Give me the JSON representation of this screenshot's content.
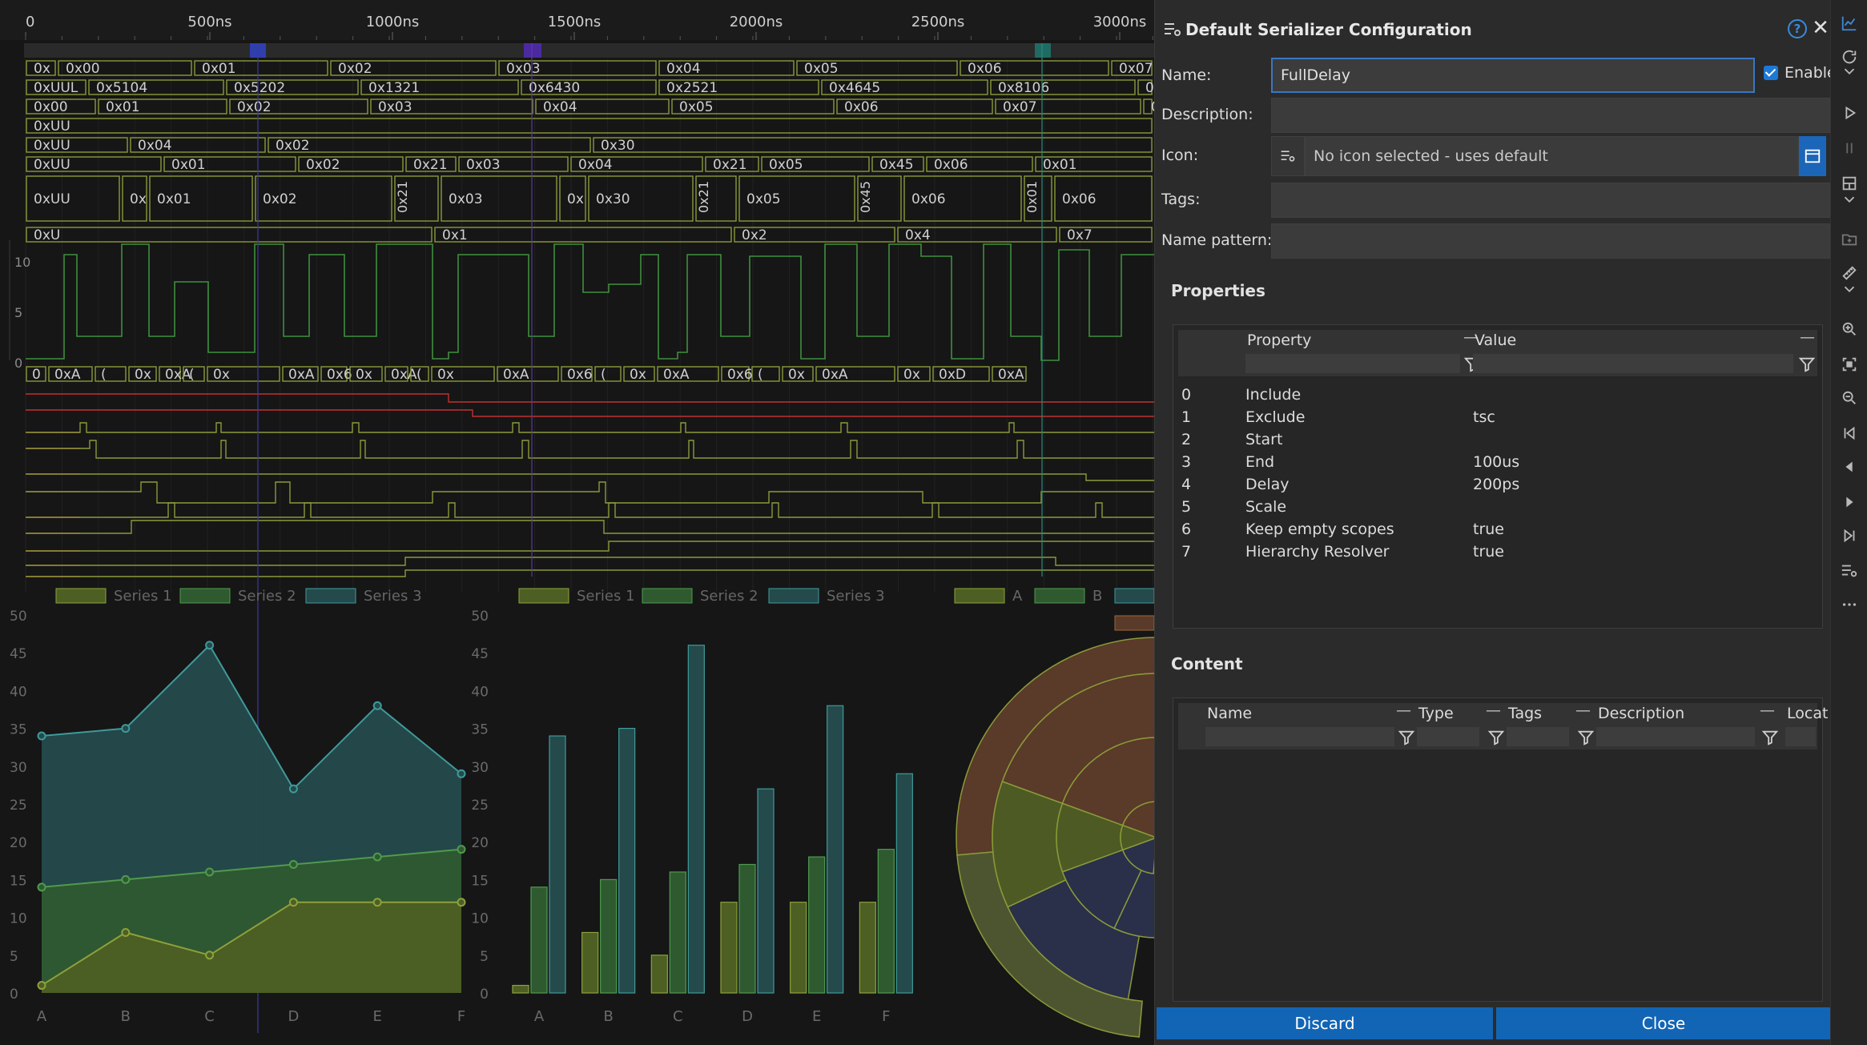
{
  "timeline": {
    "ticks": [
      "0",
      "500ns",
      "1000ns",
      "1500ns",
      "2000ns",
      "2500ns",
      "3000ns"
    ]
  },
  "bus_rows": [
    [
      "0x",
      "0x00",
      "0x01",
      "0x02",
      "0x03",
      "0x04",
      "0x05",
      "0x06",
      "0x07"
    ],
    [
      "0xUUL",
      "0x5104",
      "0x5202",
      "0x1321",
      "0x6430",
      "0x2521",
      "0x4645",
      "0x8106",
      "0x"
    ],
    [
      "0x00",
      "0x01",
      "0x02",
      "0x03",
      "0x04",
      "0x05",
      "0x06",
      "0x07",
      "0"
    ],
    [
      "0xUU"
    ],
    [
      "0xUU",
      "0x04",
      "0x02",
      "0x30"
    ],
    [
      "0xUU",
      "0x01",
      "0x02",
      "0x21",
      "0x03",
      "0x04",
      "0x21",
      "0x05",
      "0x45",
      "0x06",
      "0x01"
    ],
    [
      "0xUU",
      "0x",
      "0x01",
      "0x02",
      "0x21",
      "0x03",
      "0x",
      "0x30",
      "0x21",
      "0x05",
      "0x45",
      "0x06",
      "0x01",
      "0x06"
    ],
    [
      "0xU",
      "0x1",
      "0x2",
      "0x4",
      "0x7"
    ],
    [
      "0",
      "0xA",
      "(",
      "0x",
      "0xA",
      "(",
      "0x",
      "0xA",
      "0x6",
      "0x",
      "0xA",
      "(",
      "0x",
      "0xA",
      "0x6",
      "(",
      "0x",
      "0xA",
      "0x6",
      "(",
      "0x",
      "0xA",
      "0x",
      "0xD",
      "0xA"
    ]
  ],
  "analog_axis": [
    "10",
    "5",
    "0"
  ],
  "legends": {
    "area": [
      "Series 1",
      "Series 2",
      "Series 3"
    ],
    "bar": [
      "Series 1",
      "Series 2",
      "Series 3"
    ],
    "sunburst": [
      "A",
      "B"
    ]
  },
  "chart_data": [
    {
      "type": "area",
      "categories": [
        "A",
        "B",
        "C",
        "D",
        "E",
        "F"
      ],
      "ylim": [
        0,
        50
      ],
      "yticks": [
        "0",
        "5",
        "10",
        "15",
        "20",
        "25",
        "30",
        "35",
        "40",
        "45",
        "50"
      ],
      "series": [
        {
          "name": "Series 1",
          "values": [
            1,
            8,
            5,
            12,
            12,
            12
          ]
        },
        {
          "name": "Series 2",
          "values": [
            14,
            15,
            16,
            17,
            18,
            19
          ]
        },
        {
          "name": "Series 3",
          "values": [
            34,
            35,
            46,
            27,
            38,
            29
          ]
        }
      ]
    },
    {
      "type": "bar",
      "categories": [
        "A",
        "B",
        "C",
        "D",
        "E",
        "F"
      ],
      "ylim": [
        0,
        50
      ],
      "yticks": [
        "0",
        "5",
        "10",
        "15",
        "20",
        "25",
        "30",
        "35",
        "40",
        "45",
        "50"
      ],
      "series": [
        {
          "name": "Series 1",
          "values": [
            1,
            8,
            5,
            12,
            12,
            12
          ]
        },
        {
          "name": "Series 2",
          "values": [
            14,
            15,
            16,
            17,
            18,
            19
          ]
        },
        {
          "name": "Series 3",
          "values": [
            34,
            35,
            46,
            27,
            38,
            29
          ]
        }
      ]
    }
  ],
  "colors": {
    "s1_fill": "#4d5f23",
    "s1_line": "#8da13c",
    "s2_fill": "#2f5a30",
    "s2_line": "#4f9a4f",
    "s3_fill": "#254a4c",
    "s3_line": "#3f9a9a",
    "accent": "#1265b5"
  },
  "dialog": {
    "title": "Default Serializer Configuration",
    "help": "?",
    "close": "✕",
    "name_label": "Name:",
    "name_value": "FullDelay",
    "enable_label": "Enable",
    "description_label": "Description:",
    "description_value": "",
    "icon_label": "Icon:",
    "icon_value": "No icon selected - uses default",
    "tags_label": "Tags:",
    "tags_value": "",
    "name_pattern_label": "Name pattern:",
    "name_pattern_value": "",
    "properties_title": "Properties",
    "property_col": "Property",
    "value_col": "Value",
    "properties": [
      {
        "idx": "0",
        "property": "Include",
        "value": ""
      },
      {
        "idx": "1",
        "property": "Exclude",
        "value": "tsc"
      },
      {
        "idx": "2",
        "property": "Start",
        "value": ""
      },
      {
        "idx": "3",
        "property": "End",
        "value": "100us"
      },
      {
        "idx": "4",
        "property": "Delay",
        "value": "200ps"
      },
      {
        "idx": "5",
        "property": "Scale",
        "value": ""
      },
      {
        "idx": "6",
        "property": "Keep empty scopes",
        "value": "true"
      },
      {
        "idx": "7",
        "property": "Hierarchy Resolver",
        "value": "true"
      }
    ],
    "content_title": "Content",
    "content_cols": {
      "name": "Name",
      "type": "Type",
      "tags": "Tags",
      "description": "Description",
      "location": "Locat"
    },
    "discard": "Discard",
    "close_btn": "Close"
  }
}
